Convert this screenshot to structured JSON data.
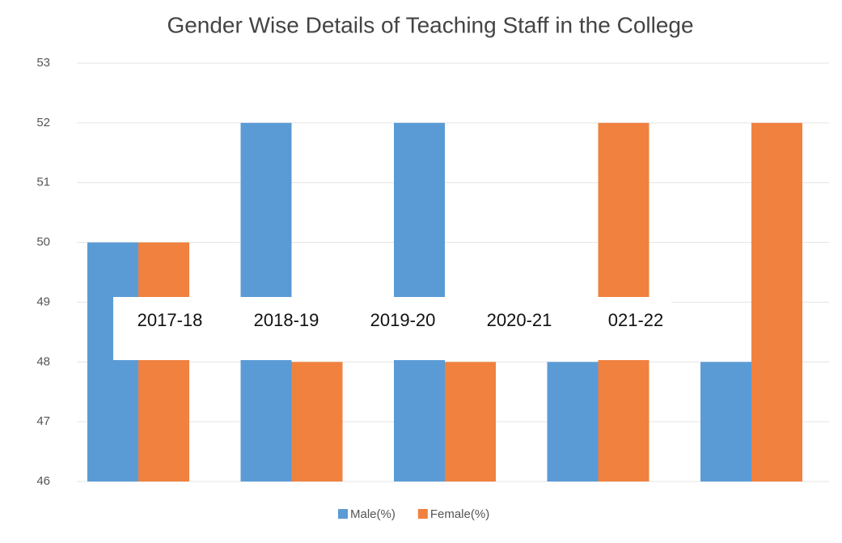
{
  "chart_data": {
    "type": "bar",
    "title": "Gender Wise Details of Teaching Staff  in the College",
    "categories": [
      "2017-18",
      "2018-19",
      "2019-20",
      "2020-21",
      "021-22"
    ],
    "series": [
      {
        "name": "Male(%)",
        "color": "#5b9bd5",
        "values": [
          50,
          52,
          52,
          48,
          48
        ]
      },
      {
        "name": "Female(%)",
        "color": "#f0813f",
        "values": [
          50,
          48,
          48,
          52,
          52
        ]
      }
    ],
    "ylim": [
      46,
      53
    ],
    "yticks": [
      46,
      47,
      48,
      49,
      50,
      51,
      52,
      53
    ],
    "grid": true,
    "legend": "bottom"
  }
}
